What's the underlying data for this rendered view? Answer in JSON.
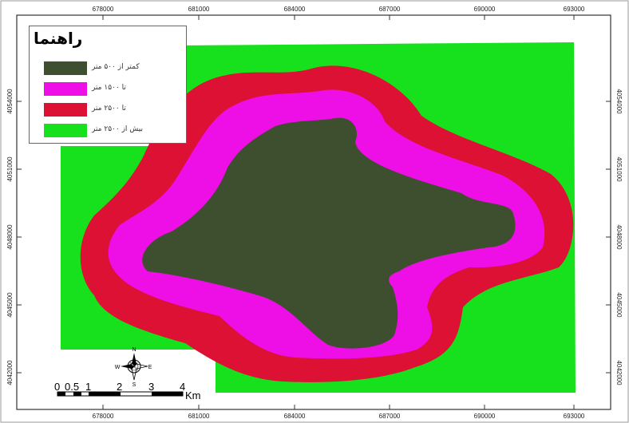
{
  "map": {
    "x_ticks": [
      "678000",
      "681000",
      "684000",
      "687000",
      "690000",
      "693000"
    ],
    "y_ticks": [
      "4054000",
      "4051000",
      "4048000",
      "4045000",
      "4042000"
    ],
    "colors": {
      "under_500": "#3d4f2e",
      "to_1500": "#ee0ee6",
      "to_2500": "#dc1133",
      "over_2500": "#17e01d",
      "frame": "#333333",
      "background": "#ffffff"
    }
  },
  "legend": {
    "title": "راهنما",
    "items": [
      {
        "label": "کمتر از ۵۰۰ متر",
        "color": "#3d4f2e"
      },
      {
        "label": "تا ۱۵۰۰ متر",
        "color": "#ee0ee6"
      },
      {
        "label": "تا ۲۵۰۰ متر",
        "color": "#dc1133"
      },
      {
        "label": "بیش از ۲۵۰۰ متر",
        "color": "#17e01d"
      }
    ]
  },
  "north_arrow": {
    "icon": "compass-rose-icon",
    "n": "N",
    "s": "S",
    "e": "E",
    "w": "W"
  },
  "scale_bar": {
    "labels": [
      "0",
      "0.5",
      "1",
      "2",
      "3",
      "4"
    ],
    "unit": "Km"
  }
}
